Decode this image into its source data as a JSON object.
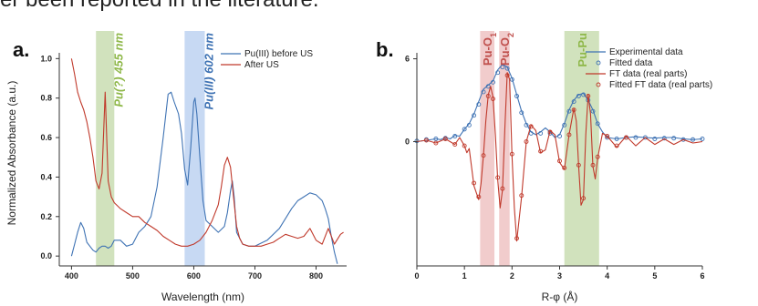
{
  "header_text": "er been reported in the literature.",
  "colors": {
    "blue": "#3f73b4",
    "red": "#c0392b",
    "green_band": "#b8d39a",
    "blue_band": "#a9c4ec",
    "red_band": "#eab0b0",
    "green_text": "#8fb84a",
    "blue_text": "#3f73b4",
    "red_text": "#c0504d"
  },
  "chart_data": [
    {
      "type": "line",
      "panel_label": "a.",
      "xlabel": "Wavelength (nm)",
      "ylabel": "Normalized Absorbance (a.u.)",
      "xlim": [
        380,
        850
      ],
      "ylim": [
        -0.05,
        1.02
      ],
      "x_ticks": [
        400,
        500,
        600,
        700,
        800
      ],
      "y_ticks": [
        0.0,
        0.2,
        0.4,
        0.6,
        0.8,
        1.0
      ],
      "y_tick_labels": [
        "0.0",
        "0.2",
        "0.4",
        "0.6",
        "0.8",
        "1.0"
      ],
      "legend_position": "top-right",
      "bands": [
        {
          "x0": 440,
          "x1": 470,
          "label": "Pu(?) 455 nm",
          "color": "green"
        },
        {
          "x0": 585,
          "x1": 618,
          "label": "Pu(III) 602 nm",
          "color": "blue"
        }
      ],
      "series": [
        {
          "name": "Pu(III) before US",
          "color": "blue",
          "x": [
            400,
            405,
            410,
            415,
            420,
            425,
            430,
            435,
            440,
            445,
            450,
            455,
            460,
            465,
            470,
            480,
            490,
            500,
            510,
            520,
            530,
            540,
            550,
            558,
            563,
            568,
            575,
            580,
            585,
            590,
            595,
            600,
            602,
            605,
            610,
            615,
            620,
            630,
            640,
            650,
            655,
            660,
            663,
            666,
            670,
            680,
            690,
            700,
            720,
            740,
            760,
            770,
            780,
            790,
            800,
            810,
            815,
            820,
            825,
            830,
            835
          ],
          "y": [
            0.0,
            0.06,
            0.12,
            0.17,
            0.14,
            0.07,
            0.05,
            0.03,
            0.02,
            0.04,
            0.05,
            0.05,
            0.04,
            0.05,
            0.08,
            0.08,
            0.05,
            0.06,
            0.12,
            0.15,
            0.2,
            0.35,
            0.6,
            0.82,
            0.83,
            0.78,
            0.72,
            0.62,
            0.44,
            0.36,
            0.55,
            0.78,
            0.8,
            0.72,
            0.5,
            0.28,
            0.18,
            0.15,
            0.12,
            0.15,
            0.22,
            0.33,
            0.38,
            0.3,
            0.12,
            0.06,
            0.05,
            0.05,
            0.08,
            0.14,
            0.24,
            0.28,
            0.3,
            0.32,
            0.31,
            0.28,
            0.24,
            0.19,
            0.1,
            0.02,
            -0.04
          ]
        },
        {
          "name": "After US",
          "color": "red",
          "x": [
            400,
            405,
            410,
            415,
            420,
            425,
            430,
            435,
            440,
            445,
            450,
            455,
            460,
            465,
            470,
            480,
            490,
            500,
            510,
            520,
            530,
            540,
            550,
            560,
            570,
            580,
            590,
            600,
            610,
            620,
            630,
            640,
            645,
            650,
            655,
            660,
            665,
            670,
            675,
            680,
            690,
            700,
            710,
            720,
            730,
            740,
            750,
            760,
            770,
            780,
            790,
            800,
            810,
            820,
            830,
            840,
            845
          ],
          "y": [
            1.0,
            0.92,
            0.83,
            0.78,
            0.74,
            0.68,
            0.6,
            0.5,
            0.38,
            0.34,
            0.42,
            0.83,
            0.38,
            0.3,
            0.27,
            0.24,
            0.22,
            0.2,
            0.2,
            0.17,
            0.15,
            0.13,
            0.1,
            0.08,
            0.06,
            0.05,
            0.05,
            0.06,
            0.08,
            0.12,
            0.18,
            0.26,
            0.35,
            0.46,
            0.5,
            0.45,
            0.3,
            0.15,
            0.09,
            0.06,
            0.05,
            0.05,
            0.05,
            0.06,
            0.07,
            0.09,
            0.11,
            0.1,
            0.09,
            0.1,
            0.14,
            0.08,
            0.06,
            0.14,
            0.06,
            0.11,
            0.12
          ]
        }
      ]
    },
    {
      "type": "line",
      "panel_label": "b.",
      "xlabel": "R-φ (Å)",
      "ylabel": "",
      "xlim": [
        0,
        6
      ],
      "ylim": [
        -9,
        6.3
      ],
      "x_ticks": [
        0,
        1,
        2,
        3,
        4,
        5,
        6
      ],
      "y_ticks": [
        6,
        0
      ],
      "y_tick_labels": [
        "6",
        "0"
      ],
      "legend_position": "top-right",
      "bands": [
        {
          "x0": 1.33,
          "x1": 1.63,
          "label": "Pu-O1",
          "label_main": "Pu-O",
          "label_sub": "1",
          "color": "red"
        },
        {
          "x0": 1.73,
          "x1": 1.95,
          "label": "Pu-O2",
          "label_main": "Pu-O",
          "label_sub": "2",
          "color": "red"
        },
        {
          "x0": 3.1,
          "x1": 3.83,
          "label": "Pu-Pu",
          "label_main": "Pu-Pu",
          "label_sub": "",
          "color": "green"
        }
      ],
      "series": [
        {
          "name": "Experimental data",
          "color": "blue",
          "style": "line",
          "x": [
            0.0,
            0.2,
            0.4,
            0.5,
            0.6,
            0.7,
            0.8,
            0.9,
            1.0,
            1.1,
            1.2,
            1.3,
            1.4,
            1.5,
            1.6,
            1.7,
            1.8,
            1.9,
            2.0,
            2.1,
            2.2,
            2.3,
            2.4,
            2.5,
            2.6,
            2.7,
            2.8,
            2.9,
            3.0,
            3.1,
            3.2,
            3.3,
            3.4,
            3.5,
            3.6,
            3.7,
            3.8,
            3.9,
            4.0,
            4.2,
            4.4,
            4.6,
            4.8,
            5.0,
            5.2,
            5.4,
            5.6,
            5.8,
            6.0
          ],
          "y": [
            0.0,
            0.1,
            0.2,
            0.15,
            0.3,
            0.2,
            0.45,
            0.4,
            0.9,
            1.3,
            2.0,
            2.9,
            3.8,
            4.1,
            4.4,
            5.2,
            5.6,
            5.4,
            4.6,
            3.4,
            2.2,
            1.3,
            0.7,
            0.5,
            0.7,
            1.0,
            0.7,
            0.3,
            0.5,
            1.3,
            2.3,
            3.0,
            3.4,
            3.5,
            3.0,
            2.3,
            1.3,
            0.7,
            0.3,
            0.2,
            0.3,
            0.35,
            0.3,
            0.25,
            0.3,
            0.3,
            0.2,
            0.15,
            0.2
          ]
        },
        {
          "name": "Fitted data",
          "color": "blue",
          "style": "markers",
          "x": [
            0.0,
            0.2,
            0.4,
            0.6,
            0.8,
            1.0,
            1.1,
            1.2,
            1.3,
            1.4,
            1.5,
            1.6,
            1.7,
            1.8,
            1.9,
            2.0,
            2.1,
            2.2,
            2.3,
            2.4,
            2.6,
            2.8,
            3.0,
            3.1,
            3.2,
            3.3,
            3.4,
            3.5,
            3.6,
            3.7,
            3.8,
            4.0,
            4.2,
            4.4,
            4.6,
            4.8,
            5.0,
            5.2,
            5.4,
            5.6,
            5.8,
            6.0
          ],
          "y": [
            0.05,
            0.15,
            0.2,
            0.25,
            0.4,
            0.9,
            1.2,
            1.9,
            2.7,
            3.6,
            4.0,
            4.3,
            5.0,
            5.4,
            5.3,
            4.5,
            3.3,
            2.1,
            1.2,
            0.6,
            0.6,
            0.6,
            0.4,
            1.2,
            2.2,
            2.9,
            3.3,
            3.4,
            3.0,
            2.2,
            1.3,
            0.3,
            0.2,
            0.3,
            0.3,
            0.3,
            0.2,
            0.25,
            0.25,
            0.15,
            0.15,
            0.2
          ]
        },
        {
          "name": "FT data (real parts)",
          "color": "red",
          "style": "line",
          "x": [
            0.0,
            0.2,
            0.4,
            0.6,
            0.8,
            0.9,
            1.0,
            1.05,
            1.1,
            1.2,
            1.3,
            1.35,
            1.4,
            1.45,
            1.5,
            1.55,
            1.6,
            1.65,
            1.7,
            1.75,
            1.8,
            1.85,
            1.9,
            1.95,
            2.0,
            2.05,
            2.1,
            2.2,
            2.3,
            2.4,
            2.5,
            2.6,
            2.7,
            2.8,
            2.9,
            3.0,
            3.1,
            3.2,
            3.3,
            3.35,
            3.4,
            3.45,
            3.5,
            3.55,
            3.6,
            3.65,
            3.7,
            3.75,
            3.8,
            3.9,
            4.0,
            4.2,
            4.4,
            4.6,
            4.8,
            5.0,
            5.2,
            5.4,
            5.6,
            5.8,
            6.0
          ],
          "y": [
            0.0,
            0.1,
            -0.1,
            0.2,
            -0.2,
            0.3,
            -0.3,
            -0.8,
            -0.5,
            -3.2,
            -4.2,
            -3.0,
            -1.0,
            1.5,
            3.4,
            4.0,
            3.2,
            0.5,
            -2.8,
            -4.8,
            -3.5,
            1.0,
            5.0,
            4.5,
            -1.0,
            -4.8,
            -7.2,
            -4.0,
            0.0,
            1.2,
            0.8,
            -0.8,
            -0.6,
            0.8,
            0.5,
            -1.5,
            -2.0,
            0.5,
            2.4,
            1.5,
            -1.8,
            -4.6,
            -4.2,
            0.5,
            3.4,
            2.0,
            -1.8,
            -2.7,
            -1.2,
            0.6,
            0.4,
            -0.4,
            0.4,
            -0.3,
            0.3,
            -0.2,
            0.2,
            -0.2,
            0.15,
            -0.1,
            0.0
          ]
        },
        {
          "name": "Fitted FT data (real parts)",
          "color": "red",
          "style": "markers",
          "x": [
            0.2,
            0.4,
            0.6,
            0.8,
            1.0,
            1.2,
            1.3,
            1.4,
            1.5,
            1.6,
            1.7,
            1.8,
            1.9,
            2.0,
            2.1,
            2.2,
            2.3,
            2.4,
            2.6,
            2.8,
            3.0,
            3.1,
            3.2,
            3.3,
            3.4,
            3.5,
            3.6,
            3.7,
            3.8,
            4.0,
            4.2,
            4.4
          ],
          "y": [
            0.1,
            -0.1,
            0.2,
            -0.2,
            -0.3,
            -3.0,
            -4.0,
            -1.0,
            3.3,
            3.1,
            -2.6,
            -3.4,
            4.8,
            -0.9,
            -7.0,
            -3.9,
            0.0,
            1.1,
            -0.7,
            0.7,
            -1.4,
            -1.9,
            0.5,
            2.3,
            -1.7,
            -4.1,
            3.3,
            -1.7,
            -1.1,
            0.4,
            -0.3,
            0.3
          ]
        }
      ]
    }
  ]
}
